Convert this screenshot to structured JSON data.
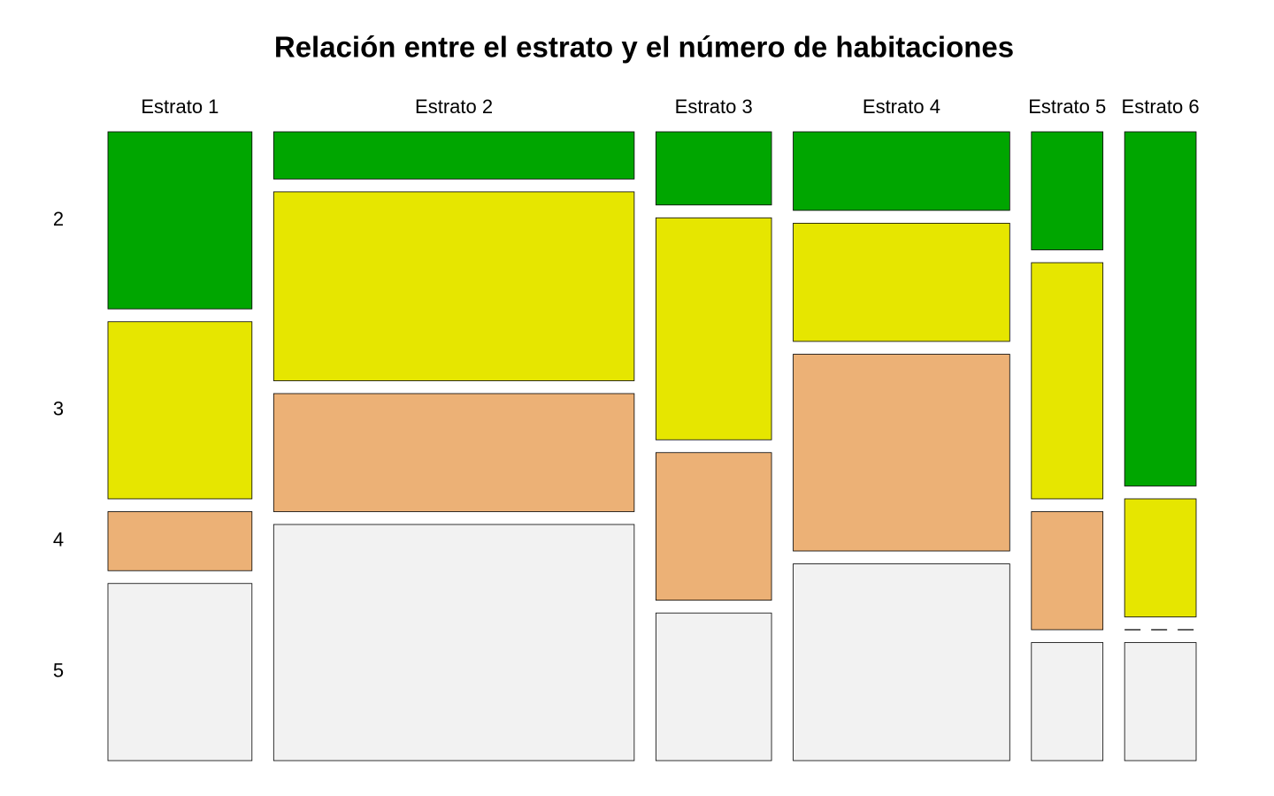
{
  "chart_data": {
    "type": "mosaic",
    "title": "Relación entre el estrato y el número de habitaciones",
    "categories": [
      "Estrato 1",
      "Estrato 2",
      "Estrato 3",
      "Estrato 4",
      "Estrato 5",
      "Estrato 6"
    ],
    "widths": [
      14.7,
      36.8,
      11.8,
      22.1,
      7.3,
      7.3
    ],
    "series": [
      {
        "name": "2",
        "color": "#00a600",
        "values": [
          30,
          8,
          12.4,
          13.3,
          20,
          60
        ]
      },
      {
        "name": "3",
        "color": "#e6e600",
        "values": [
          30,
          32,
          37.6,
          20,
          40,
          20
        ]
      },
      {
        "name": "4",
        "color": "#ecb176",
        "values": [
          10,
          20,
          25,
          33.3,
          20,
          0
        ]
      },
      {
        "name": "5",
        "color": "#f2f2f2",
        "values": [
          30,
          40,
          25,
          33.3,
          20,
          20
        ]
      }
    ]
  }
}
